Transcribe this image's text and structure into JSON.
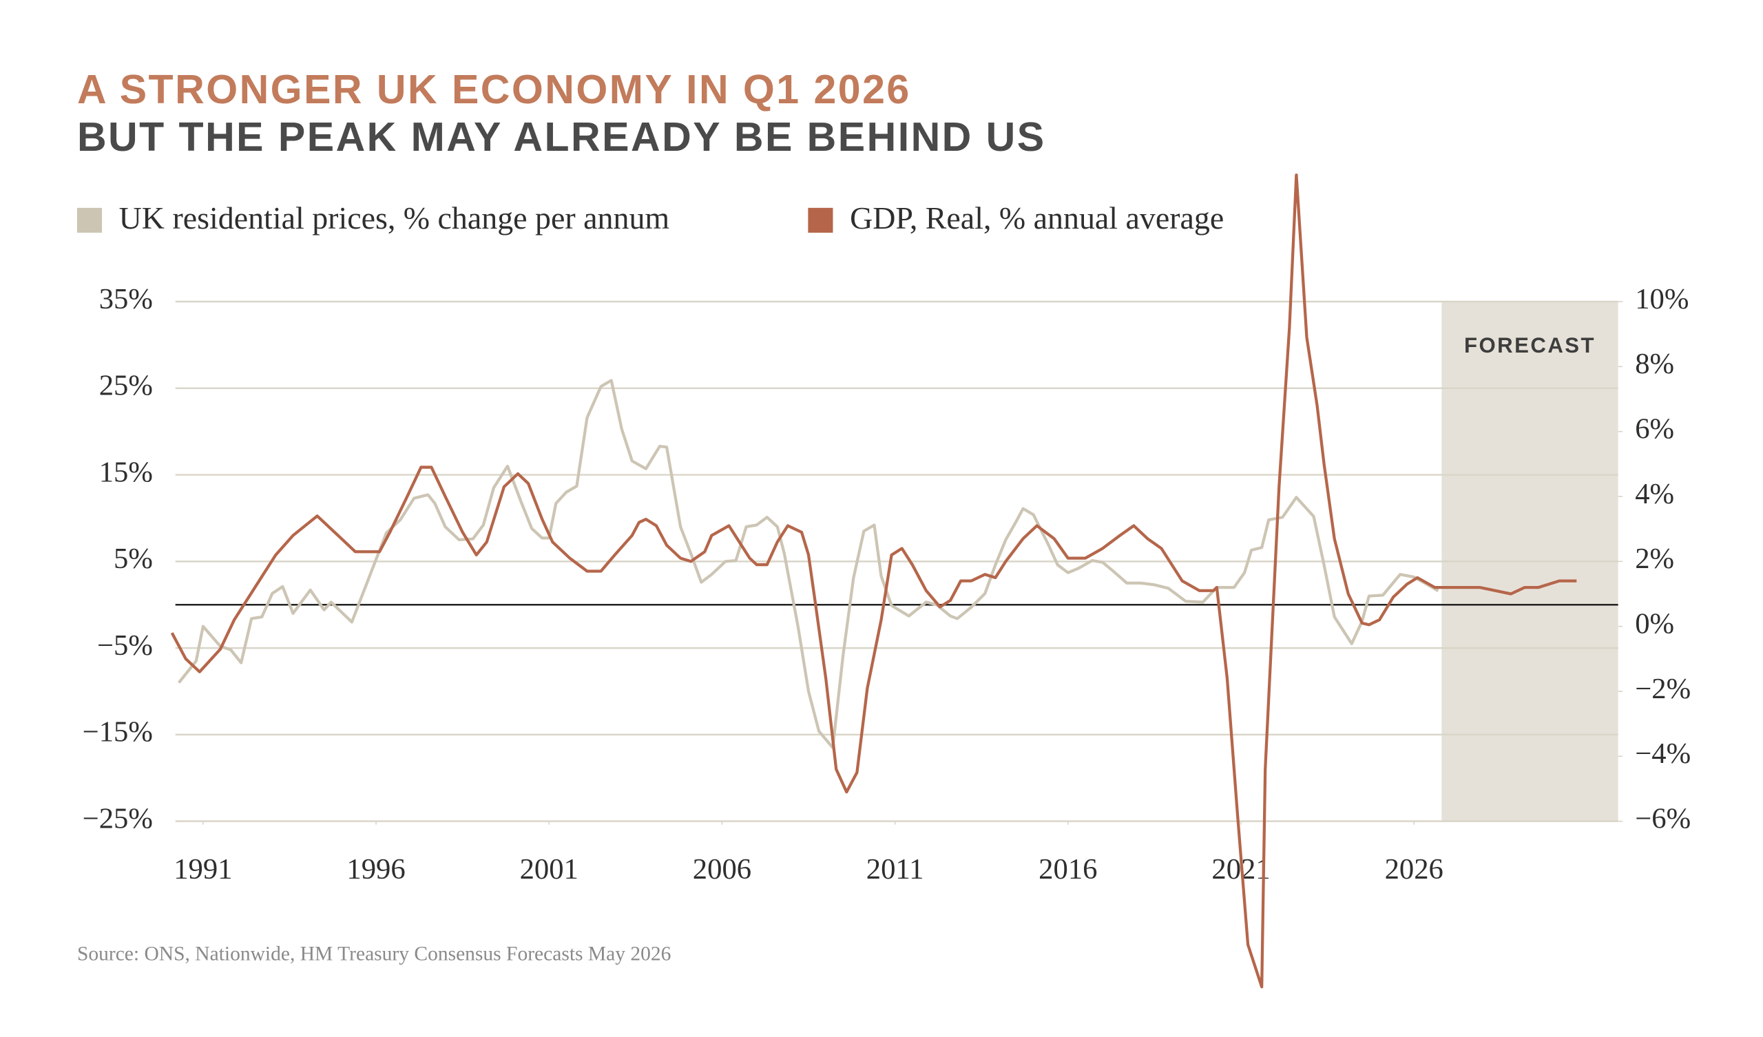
{
  "chart_data": {
    "type": "line",
    "title": "A STRONGER UK ECONOMY IN Q1 2026",
    "subtitle": "BUT THE PEAK MAY ALREADY BE BEHIND US",
    "source": "Source: ONS, Nationwide, HM Treasury Consensus Forecasts May 2026",
    "xlim": [
      1990.2,
      2031.9
    ],
    "xticks": [
      1991,
      1996,
      2001,
      2006,
      2011,
      2016,
      2021,
      2026
    ],
    "ylim": [
      -25,
      35
    ],
    "yticks": [
      {
        "value": -25,
        "label": "−25%"
      },
      {
        "value": -15,
        "label": "−15%"
      },
      {
        "value": -5,
        "label": "−5%"
      },
      {
        "value": 5,
        "label": "5%"
      },
      {
        "value": 15,
        "label": "15%"
      },
      {
        "value": 25,
        "label": "25%"
      },
      {
        "value": 35,
        "label": "35%"
      }
    ],
    "y2lim": [
      -6,
      10
    ],
    "y2ticks": [
      {
        "value": -6,
        "label": "−6%"
      },
      {
        "value": -4,
        "label": "−4%"
      },
      {
        "value": -2,
        "label": "−2%"
      },
      {
        "value": 0,
        "label": "0%"
      },
      {
        "value": 2,
        "label": "2%"
      },
      {
        "value": 4,
        "label": "4%"
      },
      {
        "value": 6,
        "label": "6%"
      },
      {
        "value": 8,
        "label": "8%"
      },
      {
        "value": 10,
        "label": "10%"
      }
    ],
    "grid": true,
    "forecast": {
      "label": "FORECAST",
      "start": 2026.8,
      "end": 2031.9,
      "color": "#e6e1d8"
    },
    "series": [
      {
        "name": "UK residential prices, % change per annum",
        "color": "#cdc5b4",
        "axis": "y",
        "x": [
          1990.3,
          1990.8,
          1991.0,
          1991.5,
          1991.8,
          1992.1,
          1992.4,
          1992.7,
          1993.0,
          1993.3,
          1993.6,
          1994.1,
          1994.5,
          1994.7,
          1995.3,
          1995.6,
          1995.9,
          1996.3,
          1996.7,
          1997.1,
          1997.5,
          1997.7,
          1998.0,
          1998.4,
          1998.8,
          1999.1,
          1999.4,
          1999.8,
          2000.2,
          2000.5,
          2000.8,
          2001.0,
          2001.2,
          2001.5,
          2001.8,
          2002.1,
          2002.5,
          2002.8,
          2003.1,
          2003.4,
          2003.8,
          2004.2,
          2004.4,
          2004.8,
          2005.1,
          2005.4,
          2005.7,
          2006.1,
          2006.4,
          2006.7,
          2007.0,
          2007.3,
          2007.6,
          2007.8,
          2008.2,
          2008.5,
          2008.8,
          2009.2,
          2009.5,
          2009.8,
          2010.1,
          2010.4,
          2010.6,
          2010.9,
          2011.4,
          2011.9,
          2012.2,
          2012.6,
          2012.8,
          2013.2,
          2013.6,
          2013.9,
          2014.2,
          2014.5,
          2014.7,
          2015.0,
          2015.4,
          2015.7,
          2016.0,
          2016.3,
          2016.7,
          2017.0,
          2017.3,
          2017.7,
          2018.1,
          2018.5,
          2018.9,
          2019.4,
          2019.9,
          2020.3,
          2020.8,
          2021.1,
          2021.3,
          2021.6,
          2021.8,
          2022.2,
          2022.6,
          2023.1,
          2023.4,
          2023.7,
          2024.2,
          2024.5,
          2024.7,
          2025.1,
          2025.6,
          2026.0,
          2026.4,
          2026.7
        ],
        "values": [
          -9,
          -6.5,
          -2.5,
          -4.8,
          -5.2,
          -6.7,
          -1.6,
          -1.4,
          1.3,
          2.1,
          -1,
          1.7,
          -0.6,
          0.3,
          -2,
          1.1,
          4.2,
          8.3,
          9.8,
          12.3,
          12.7,
          11.7,
          9,
          7.5,
          7.6,
          9.2,
          13.5,
          16,
          11.8,
          8.8,
          7.7,
          7.7,
          11.7,
          13,
          13.7,
          21.6,
          25.2,
          25.9,
          20.3,
          16.6,
          15.7,
          18.3,
          18.2,
          9,
          5.9,
          2.6,
          3.5,
          5,
          5.1,
          9,
          9.2,
          10.1,
          9,
          5.9,
          -2.6,
          -10,
          -14.6,
          -16.5,
          -5.8,
          3.1,
          8.5,
          9.2,
          3.3,
          -0.1,
          -1.3,
          0.3,
          0,
          -1.3,
          -1.6,
          -0.3,
          1.3,
          4.6,
          7.5,
          9.6,
          11.1,
          10.4,
          7.2,
          4.6,
          3.7,
          4.2,
          5.1,
          4.9,
          3.9,
          2.5,
          2.5,
          2.3,
          1.9,
          0.4,
          0.3,
          2,
          2,
          3.7,
          6.3,
          6.6,
          9.8,
          10.1,
          12.4,
          10.2,
          4.6,
          -1.4,
          -4.5,
          -1.9,
          1,
          1.1,
          3.5,
          3.2,
          2.3,
          1.6
        ]
      },
      {
        "name": "GDP, Real, % annual average",
        "color": "#b5664a",
        "axis": "y2",
        "x": [
          1990.1,
          1990.5,
          1990.9,
          1991.5,
          1991.9,
          1992.5,
          1992.8,
          1993.1,
          1993.6,
          1994.3,
          1994.9,
          1995.4,
          1995.8,
          1996.1,
          1996.4,
          1996.9,
          1997.3,
          1997.6,
          1998.0,
          1998.5,
          1998.9,
          1999.2,
          1999.7,
          2000.1,
          2000.4,
          2000.8,
          2001.1,
          2001.6,
          2002.1,
          2002.5,
          2002.9,
          2003.4,
          2003.6,
          2003.8,
          2004.1,
          2004.4,
          2004.8,
          2005.1,
          2005.5,
          2005.7,
          2006.2,
          2006.5,
          2006.8,
          2007.0,
          2007.3,
          2007.6,
          2007.9,
          2008.3,
          2008.5,
          2008.7,
          2009.0,
          2009.3,
          2009.6,
          2009.9,
          2010.2,
          2010.6,
          2010.9,
          2011.2,
          2011.5,
          2011.9,
          2012.3,
          2012.6,
          2012.9,
          2013.2,
          2013.6,
          2013.9,
          2014.2,
          2014.7,
          2015.1,
          2015.6,
          2016.0,
          2016.5,
          2017.0,
          2017.5,
          2017.9,
          2018.3,
          2018.7,
          2019.3,
          2019.8,
          2020.2,
          2020.3,
          2020.6,
          2020.9,
          2021.2,
          2021.6,
          2021.7,
          2022.1,
          2022.4,
          2022.6,
          2022.9,
          2023.2,
          2023.4,
          2023.7,
          2024.1,
          2024.5,
          2024.7,
          2025.0,
          2025.4,
          2025.8,
          2026.1,
          2026.6,
          2027.3,
          2027.9,
          2028.8,
          2029.2,
          2029.6,
          2030.2,
          2030.7
        ],
        "values": [
          -0.2,
          -1.0,
          -1.4,
          -0.7,
          0.2,
          1.2,
          1.7,
          2.2,
          2.8,
          3.4,
          2.8,
          2.3,
          2.3,
          2.3,
          2.9,
          4.0,
          4.9,
          4.9,
          4.0,
          2.9,
          2.2,
          2.6,
          4.3,
          4.7,
          4.4,
          3.3,
          2.6,
          2.1,
          1.7,
          1.7,
          2.2,
          2.8,
          3.2,
          3.3,
          3.1,
          2.5,
          2.1,
          2.0,
          2.3,
          2.8,
          3.1,
          2.6,
          2.1,
          1.9,
          1.9,
          2.6,
          3.1,
          2.9,
          2.2,
          0.7,
          -1.6,
          -4.4,
          -5.1,
          -4.5,
          -1.9,
          0.2,
          2.2,
          2.4,
          1.9,
          1.1,
          0.6,
          0.8,
          1.4,
          1.4,
          1.6,
          1.5,
          2.0,
          2.7,
          3.1,
          2.7,
          2.1,
          2.1,
          2.4,
          2.8,
          3.1,
          2.7,
          2.4,
          1.4,
          1.1,
          1.1,
          1.2,
          -1.6,
          -5.8,
          -9.8,
          -11.1,
          -4.4,
          4.3,
          9.2,
          13.9,
          8.9,
          6.8,
          5.0,
          2.7,
          1.0,
          0.1,
          0.05,
          0.2,
          0.9,
          1.3,
          1.5,
          1.2,
          1.2,
          1.2,
          1.0,
          1.2,
          1.2,
          1.4,
          1.4
        ]
      }
    ]
  }
}
